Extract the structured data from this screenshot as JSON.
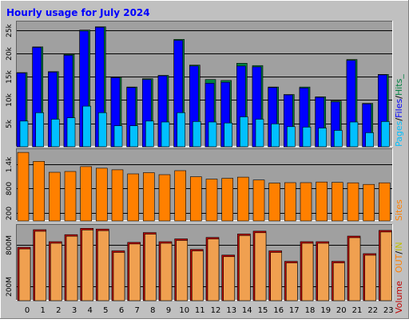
{
  "title": "Hourly usage for July 2024",
  "colors": {
    "background": "#c0c0c0",
    "plot_bg": "#a0a0a0",
    "title": "#0000ff",
    "pages": "#00c0ff",
    "files": "#0000ff",
    "hits": "#008040",
    "sites": "#ff8000",
    "kbytes": "#c00000",
    "volume_bar": "#f0a050",
    "volume_edge": "#c00000"
  },
  "legend": {
    "pages": "Pages",
    "files": "Files",
    "hits": "Hits",
    "sep1": "/",
    "sep2": "/",
    "trail": "_",
    "sites": "Sites",
    "in": "IN",
    "out": "OUT",
    "vsep": "/",
    "volume": "Volume"
  },
  "chart_data": [
    {
      "type": "bar",
      "panel": "hits-files-pages",
      "categories": [
        "0",
        "1",
        "2",
        "3",
        "4",
        "5",
        "6",
        "7",
        "8",
        "9",
        "10",
        "11",
        "12",
        "13",
        "14",
        "15",
        "16",
        "17",
        "18",
        "19",
        "20",
        "21",
        "22",
        "23"
      ],
      "series": [
        {
          "name": "Hits",
          "values": [
            15900,
            21400,
            16100,
            19800,
            25000,
            25700,
            14900,
            12800,
            14600,
            15300,
            23000,
            17500,
            14400,
            14200,
            17900,
            17400,
            12800,
            11200,
            12800,
            10700,
            9800,
            18700,
            9300,
            15500
          ]
        },
        {
          "name": "Files",
          "values": [
            15800,
            21300,
            16000,
            19600,
            24800,
            25600,
            14800,
            12700,
            14400,
            15200,
            22800,
            17300,
            13600,
            13800,
            17300,
            17100,
            12700,
            11100,
            12600,
            10600,
            9600,
            18500,
            9200,
            15400
          ]
        },
        {
          "name": "Pages",
          "values": [
            5500,
            7300,
            5900,
            6200,
            8700,
            7300,
            4500,
            4500,
            5500,
            5300,
            7300,
            5400,
            5300,
            5100,
            6400,
            5900,
            4900,
            4300,
            4200,
            4000,
            3500,
            5300,
            3000,
            5400
          ]
        }
      ],
      "yticks": [
        "5k",
        "10k",
        "15k",
        "20k",
        "25k"
      ],
      "ylim": [
        0,
        27000
      ]
    },
    {
      "type": "bar",
      "panel": "sites",
      "categories": [
        "0",
        "1",
        "2",
        "3",
        "4",
        "5",
        "6",
        "7",
        "8",
        "9",
        "10",
        "11",
        "12",
        "13",
        "14",
        "15",
        "16",
        "17",
        "18",
        "19",
        "20",
        "21",
        "22",
        "23"
      ],
      "series": [
        {
          "name": "Sites",
          "values": [
            1690,
            1470,
            1200,
            1220,
            1340,
            1300,
            1260,
            1160,
            1190,
            1140,
            1240,
            1090,
            1030,
            1050,
            1080,
            1010,
            935,
            945,
            945,
            960,
            950,
            940,
            900,
            940
          ]
        }
      ],
      "yticks": [
        "200",
        "800",
        "1.4k"
      ],
      "ylim": [
        0,
        1790
      ]
    },
    {
      "type": "bar",
      "panel": "volume",
      "categories": [
        "0",
        "1",
        "2",
        "3",
        "4",
        "5",
        "6",
        "7",
        "8",
        "9",
        "10",
        "11",
        "12",
        "13",
        "14",
        "15",
        "16",
        "17",
        "18",
        "19",
        "20",
        "21",
        "22",
        "23"
      ],
      "series": [
        {
          "name": "Volume",
          "values": [
            760,
            1010,
            840,
            940,
            1030,
            1020,
            710,
            830,
            970,
            840,
            880,
            730,
            900,
            650,
            950,
            990,
            710,
            560,
            840,
            840,
            560,
            920,
            670,
            1000
          ]
        }
      ],
      "yticks": [
        "200M",
        "800M"
      ],
      "ylim": [
        0,
        1090
      ]
    }
  ]
}
